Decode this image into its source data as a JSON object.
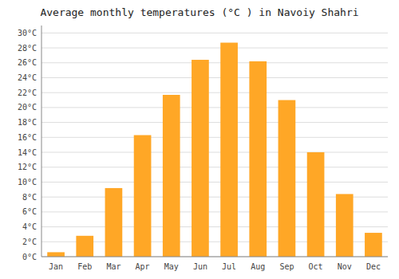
{
  "chart_data": {
    "type": "bar",
    "title": "Average monthly temperatures (°C ) in Navoiy Shahri",
    "categories": [
      "Jan",
      "Feb",
      "Mar",
      "Apr",
      "May",
      "Jun",
      "Jul",
      "Aug",
      "Sep",
      "Oct",
      "Nov",
      "Dec"
    ],
    "values": [
      0.6,
      2.8,
      9.2,
      16.3,
      21.7,
      26.4,
      28.7,
      26.2,
      21.0,
      14.0,
      8.4,
      3.2
    ],
    "color": "#FFA726",
    "ylim": [
      0,
      31
    ],
    "yticks": [
      {
        "value": 0,
        "label": "0°C"
      },
      {
        "value": 2,
        "label": "2°C"
      },
      {
        "value": 4,
        "label": "4°C"
      },
      {
        "value": 6,
        "label": "6°C"
      },
      {
        "value": 8,
        "label": "8°C"
      },
      {
        "value": 10,
        "label": "10°C"
      },
      {
        "value": 12,
        "label": "12°C"
      },
      {
        "value": 14,
        "label": "14°C"
      },
      {
        "value": 16,
        "label": "16°C"
      },
      {
        "value": 18,
        "label": "18°C"
      },
      {
        "value": 20,
        "label": "20°C"
      },
      {
        "value": 22,
        "label": "22°C"
      },
      {
        "value": 24,
        "label": "24°C"
      },
      {
        "value": 26,
        "label": "26°C"
      },
      {
        "value": 28,
        "label": "28°C"
      },
      {
        "value": 30,
        "label": "30°C"
      }
    ],
    "grid": true
  }
}
